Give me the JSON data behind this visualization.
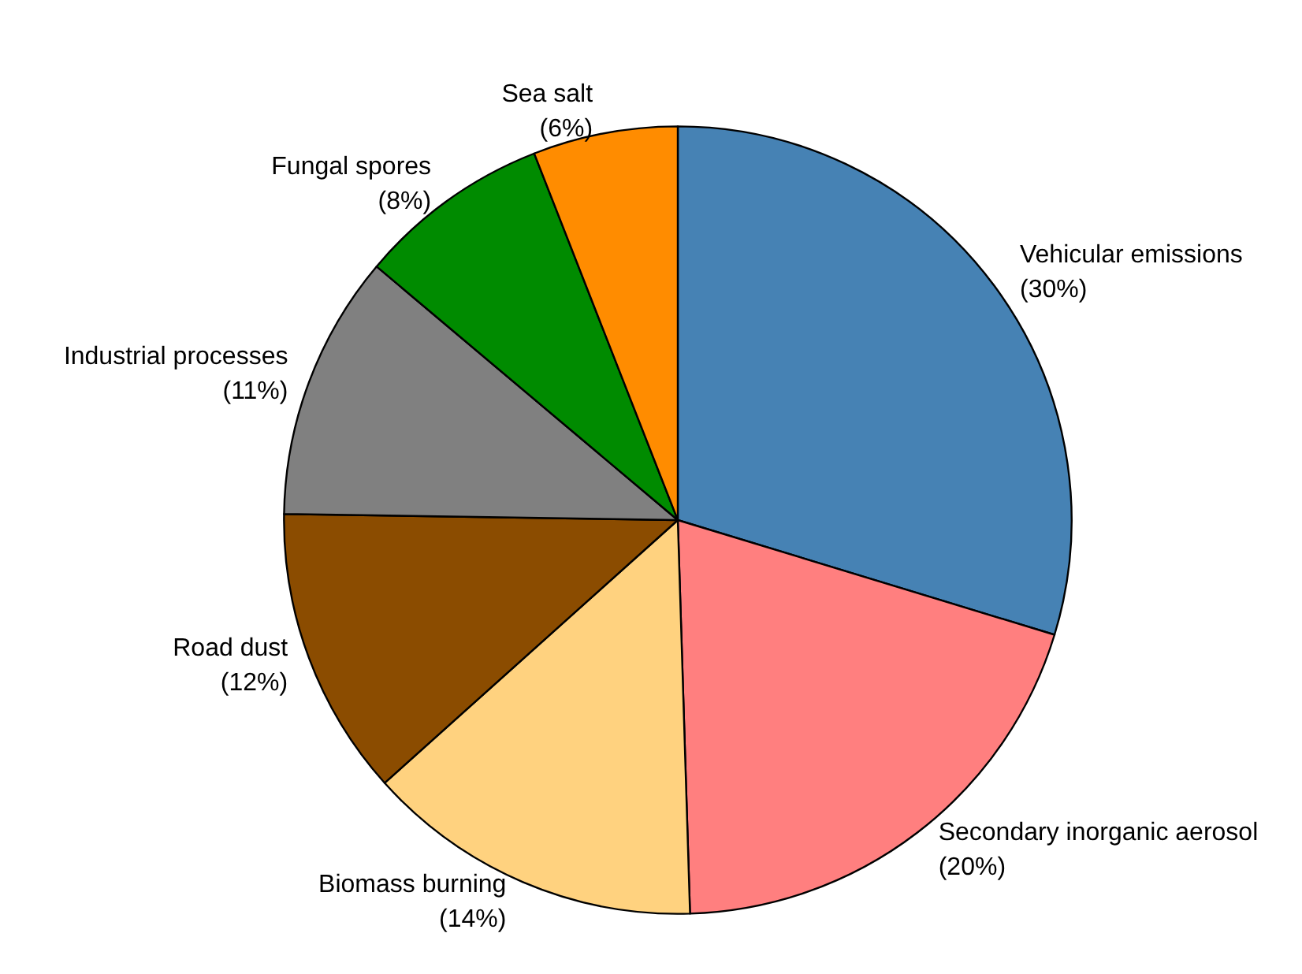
{
  "chart_data": {
    "type": "pie",
    "categories": [
      "Vehicular emissions",
      "Secondary inorganic aerosol",
      "Biomass burning",
      "Road dust",
      "Industrial processes",
      "Fungal spores",
      "Sea salt"
    ],
    "values": [
      30,
      20,
      14,
      12,
      11,
      8,
      6
    ],
    "value_labels": [
      "(30%)",
      "(20%)",
      "(14%)",
      "(12%)",
      "(11%)",
      "(8%)",
      "(6%)"
    ],
    "colors": [
      "#4682b4",
      "#ff7f7f",
      "#ffd27f",
      "#8b4c00",
      "#808080",
      "#008b00",
      "#ff8c00"
    ],
    "legend": false
  }
}
